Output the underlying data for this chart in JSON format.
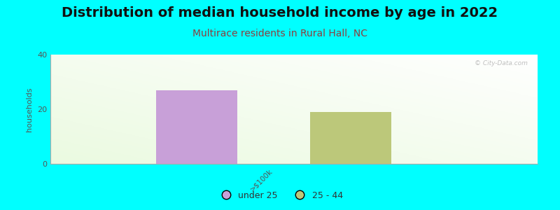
{
  "title": "Distribution of median household income by age in 2022",
  "subtitle": "Multirace residents in Rural Hall, NC",
  "ylabel": "households",
  "watermark": "© City-Data.com",
  "bar_value_under25": 27,
  "bar_value_25_44": 19,
  "bar_color_under25": "#c8a0d8",
  "bar_color_25_44": "#bcc87a",
  "background_color": "#00ffff",
  "ylim": [
    0,
    40
  ],
  "yticks": [
    0,
    20,
    40
  ],
  "title_fontsize": 14,
  "subtitle_fontsize": 10,
  "ylabel_fontsize": 8,
  "legend_labels": [
    "under 25",
    "25 - 44"
  ],
  "legend_colors": [
    "#c8a0d8",
    "#bcc87a"
  ],
  "x_tick_label": ">$100k",
  "subtitle_color": "#8b4040"
}
